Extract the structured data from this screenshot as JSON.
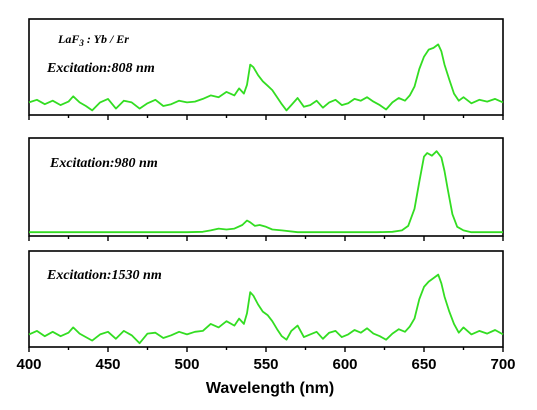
{
  "chart_data": {
    "type": "line",
    "colors": {
      "trace": "#33dd22",
      "frame": "#000000"
    },
    "grid": false,
    "xlabel": "Wavelength (nm)",
    "xlim": [
      400,
      700
    ],
    "xticks": [
      "400",
      "450",
      "500",
      "550",
      "600",
      "650",
      "700"
    ],
    "sample_label": {
      "main": "LaF",
      "sub": "3",
      "rest": " : Yb / Er"
    },
    "panels": [
      {
        "label": "Excitation:808 nm",
        "x": [
          400,
          405,
          410,
          415,
          420,
          425,
          428,
          432,
          436,
          440,
          445,
          450,
          455,
          460,
          465,
          470,
          475,
          480,
          485,
          490,
          495,
          500,
          505,
          510,
          515,
          520,
          525,
          530,
          533,
          536,
          538,
          540,
          542,
          545,
          548,
          551,
          554,
          557,
          560,
          563,
          566,
          570,
          574,
          578,
          582,
          586,
          590,
          594,
          598,
          602,
          606,
          610,
          614,
          618,
          622,
          626,
          630,
          634,
          638,
          641,
          644,
          647,
          650,
          653,
          656,
          659,
          661,
          663,
          666,
          669,
          672,
          675,
          680,
          685,
          690,
          695,
          700
        ],
        "y": [
          0.12,
          0.15,
          0.1,
          0.14,
          0.09,
          0.13,
          0.19,
          0.12,
          0.08,
          0.03,
          0.12,
          0.16,
          0.05,
          0.14,
          0.12,
          0.05,
          0.11,
          0.15,
          0.08,
          0.1,
          0.14,
          0.12,
          0.13,
          0.16,
          0.2,
          0.18,
          0.24,
          0.2,
          0.28,
          0.22,
          0.32,
          0.55,
          0.52,
          0.43,
          0.36,
          0.31,
          0.26,
          0.18,
          0.1,
          0.03,
          0.09,
          0.17,
          0.07,
          0.09,
          0.14,
          0.06,
          0.12,
          0.15,
          0.09,
          0.11,
          0.16,
          0.14,
          0.18,
          0.13,
          0.09,
          0.04,
          0.12,
          0.17,
          0.14,
          0.2,
          0.3,
          0.5,
          0.64,
          0.72,
          0.74,
          0.78,
          0.7,
          0.55,
          0.38,
          0.22,
          0.14,
          0.18,
          0.11,
          0.15,
          0.13,
          0.16,
          0.12
        ]
      },
      {
        "label": "Excitation:980 nm",
        "x": [
          400,
          420,
          440,
          460,
          480,
          500,
          510,
          515,
          520,
          525,
          530,
          535,
          538,
          540,
          543,
          546,
          550,
          554,
          560,
          570,
          580,
          590,
          600,
          610,
          620,
          630,
          636,
          640,
          644,
          647,
          650,
          652,
          655,
          658,
          661,
          663,
          665,
          668,
          671,
          675,
          680,
          690,
          700
        ],
        "y": [
          0.02,
          0.02,
          0.02,
          0.02,
          0.02,
          0.02,
          0.025,
          0.04,
          0.06,
          0.05,
          0.06,
          0.1,
          0.15,
          0.13,
          0.09,
          0.1,
          0.08,
          0.05,
          0.04,
          0.02,
          0.02,
          0.02,
          0.02,
          0.02,
          0.02,
          0.025,
          0.04,
          0.09,
          0.28,
          0.58,
          0.86,
          0.9,
          0.87,
          0.92,
          0.85,
          0.7,
          0.5,
          0.22,
          0.08,
          0.04,
          0.02,
          0.02,
          0.02
        ]
      },
      {
        "label": "Excitation:1530 nm",
        "x": [
          400,
          405,
          410,
          415,
          420,
          425,
          428,
          432,
          436,
          440,
          445,
          450,
          455,
          460,
          465,
          470,
          475,
          480,
          485,
          490,
          495,
          500,
          505,
          510,
          515,
          520,
          525,
          530,
          533,
          536,
          538,
          540,
          542,
          545,
          548,
          551,
          554,
          557,
          560,
          563,
          566,
          570,
          574,
          578,
          582,
          586,
          590,
          594,
          598,
          602,
          606,
          610,
          614,
          618,
          622,
          626,
          630,
          634,
          638,
          641,
          644,
          647,
          650,
          653,
          656,
          659,
          661,
          663,
          666,
          669,
          672,
          675,
          680,
          685,
          690,
          695,
          700
        ],
        "y": [
          0.12,
          0.16,
          0.1,
          0.15,
          0.1,
          0.14,
          0.2,
          0.13,
          0.09,
          0.05,
          0.12,
          0.15,
          0.07,
          0.16,
          0.11,
          0.02,
          0.13,
          0.14,
          0.08,
          0.11,
          0.15,
          0.12,
          0.15,
          0.16,
          0.24,
          0.2,
          0.27,
          0.22,
          0.3,
          0.24,
          0.36,
          0.6,
          0.56,
          0.46,
          0.38,
          0.34,
          0.27,
          0.18,
          0.1,
          0.06,
          0.16,
          0.22,
          0.09,
          0.12,
          0.15,
          0.07,
          0.14,
          0.16,
          0.09,
          0.12,
          0.17,
          0.14,
          0.19,
          0.13,
          0.1,
          0.06,
          0.13,
          0.18,
          0.15,
          0.21,
          0.3,
          0.52,
          0.66,
          0.72,
          0.76,
          0.8,
          0.7,
          0.55,
          0.38,
          0.24,
          0.14,
          0.2,
          0.12,
          0.16,
          0.13,
          0.17,
          0.12
        ]
      }
    ]
  }
}
